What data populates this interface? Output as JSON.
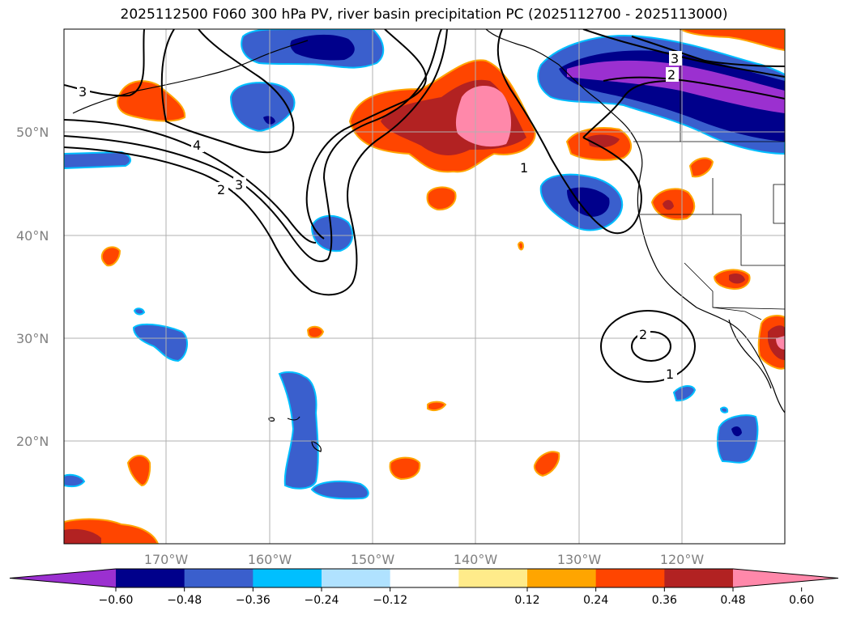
{
  "title": "2025112500 F060 300 hPa PV, river basin precipitation PC (2025112700 - 2025113000)",
  "lat_labels": [
    "50°N",
    "40°N",
    "30°N",
    "20°N"
  ],
  "lon_labels": [
    "170°W",
    "160°W",
    "150°W",
    "140°W",
    "130°W",
    "120°W"
  ],
  "pv_contour_labels": [
    "3",
    "4",
    "3",
    "2",
    "1",
    "3",
    "2",
    "2",
    "1"
  ],
  "colorbar": {
    "ticks": [
      "−0.60",
      "−0.48",
      "−0.36",
      "−0.24",
      "−0.12",
      "0.12",
      "0.24",
      "0.36",
      "0.48",
      "0.60"
    ],
    "colors": [
      "#9b30d0",
      "#00008b",
      "#3a5fcd",
      "#00bfff",
      "#b0e2ff",
      "#ffffff",
      "#ffeb8a",
      "#ffa500",
      "#ff4500",
      "#b22222",
      "#ff88aa"
    ]
  }
}
